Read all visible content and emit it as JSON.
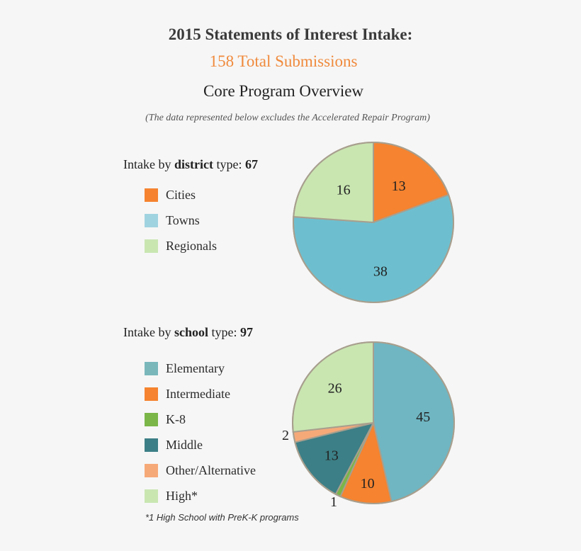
{
  "header": {
    "title": "2015 Statements of Interest Intake:",
    "subtitle": "158 Total Submissions",
    "section": "Core Program Overview",
    "note": "(The data represented below excludes the Accelerated Repair Program)"
  },
  "district_heading": {
    "prefix": "Intake by ",
    "bold": "district",
    "mid": " type: ",
    "total": "67"
  },
  "school_heading": {
    "prefix": "Intake by ",
    "bold": "school",
    "mid": " type: ",
    "total": "97"
  },
  "footnote": "*1 High School with PreK-K programs",
  "chart_data": [
    {
      "type": "pie",
      "title": "",
      "legend_position": "left",
      "slices": [
        {
          "label": "Cities",
          "value": 13,
          "color": "#f5832f"
        },
        {
          "label": "Towns",
          "value": 38,
          "color": "#6dbfcf"
        },
        {
          "label": "Regionals",
          "value": 16,
          "color": "#c9e6b1"
        }
      ],
      "legend_colors": [
        "#f5832f",
        "#a0d3e0",
        "#c9e6b1"
      ]
    },
    {
      "type": "pie",
      "title": "",
      "legend_position": "left",
      "slices": [
        {
          "label": "Elementary",
          "value": 45,
          "color": "#6fb6c2"
        },
        {
          "label": "Intermediate",
          "value": 10,
          "color": "#f5832f"
        },
        {
          "label": "K-8",
          "value": 1,
          "color": "#7ab648"
        },
        {
          "label": "Middle",
          "value": 13,
          "color": "#3c7f86"
        },
        {
          "label": "Other/Alternative",
          "value": 2,
          "color": "#f6a978"
        },
        {
          "label": "High*",
          "value": 26,
          "color": "#c9e6b1"
        }
      ],
      "legend_colors": [
        "#79b7bb",
        "#f5832f",
        "#7ab648",
        "#3c7f86",
        "#f6a978",
        "#c9e6b1"
      ]
    }
  ]
}
